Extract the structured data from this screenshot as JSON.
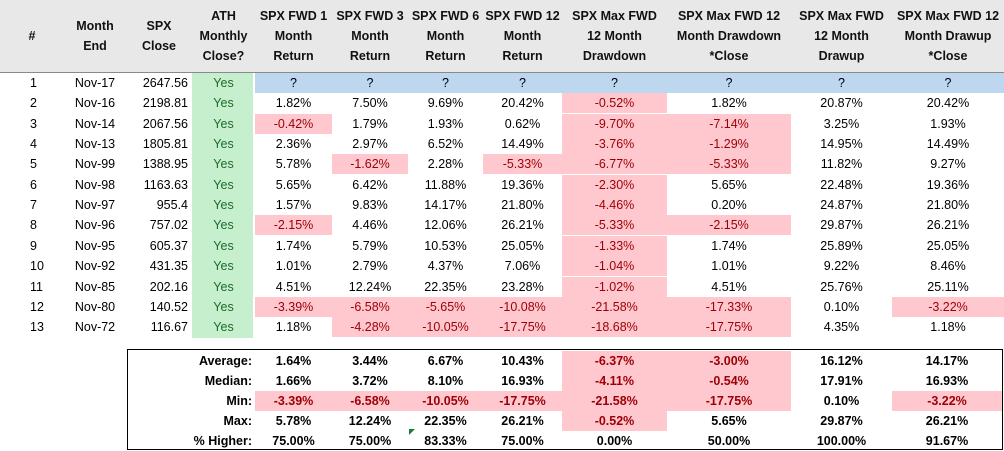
{
  "headers": [
    "#",
    "Month\nEnd",
    "SPX\nClose",
    "ATH\nMonthly\nClose?",
    "SPX FWD 1\nMonth\nReturn",
    "SPX FWD 3\nMonth\nReturn",
    "SPX FWD 6\nMonth\nReturn",
    "SPX FWD 12\nMonth\nReturn",
    "SPX Max FWD\n12 Month\nDrawdown",
    "SPX Max FWD 12\nMonth Drawdown\n*Close",
    "SPX Max FWD\n12 Month\nDrawup",
    "SPX Max FWD 12\nMonth Drawup\n*Close"
  ],
  "rows": [
    {
      "n": "1",
      "month": "Nov-17",
      "close": "2647.56",
      "ath": "Yes",
      "values": [
        "?",
        "?",
        "?",
        "?",
        "?",
        "?",
        "?",
        "?"
      ],
      "neg": [
        false,
        false,
        false,
        false,
        false,
        false,
        false,
        false
      ],
      "pending": true
    },
    {
      "n": "2",
      "month": "Nov-16",
      "close": "2198.81",
      "ath": "Yes",
      "values": [
        "1.82%",
        "7.50%",
        "9.69%",
        "20.42%",
        "-0.52%",
        "1.82%",
        "20.87%",
        "20.42%"
      ],
      "neg": [
        false,
        false,
        false,
        false,
        true,
        false,
        false,
        false
      ]
    },
    {
      "n": "3",
      "month": "Nov-14",
      "close": "2067.56",
      "ath": "Yes",
      "values": [
        "-0.42%",
        "1.79%",
        "1.93%",
        "0.62%",
        "-9.70%",
        "-7.14%",
        "3.25%",
        "1.93%"
      ],
      "neg": [
        true,
        false,
        false,
        false,
        true,
        true,
        false,
        false
      ]
    },
    {
      "n": "4",
      "month": "Nov-13",
      "close": "1805.81",
      "ath": "Yes",
      "values": [
        "2.36%",
        "2.97%",
        "6.52%",
        "14.49%",
        "-3.76%",
        "-1.29%",
        "14.95%",
        "14.49%"
      ],
      "neg": [
        false,
        false,
        false,
        false,
        true,
        true,
        false,
        false
      ]
    },
    {
      "n": "5",
      "month": "Nov-99",
      "close": "1388.95",
      "ath": "Yes",
      "values": [
        "5.78%",
        "-1.62%",
        "2.28%",
        "-5.33%",
        "-6.77%",
        "-5.33%",
        "11.82%",
        "9.27%"
      ],
      "neg": [
        false,
        true,
        false,
        true,
        true,
        true,
        false,
        false
      ]
    },
    {
      "n": "6",
      "month": "Nov-98",
      "close": "1163.63",
      "ath": "Yes",
      "values": [
        "5.65%",
        "6.42%",
        "11.88%",
        "19.36%",
        "-2.30%",
        "5.65%",
        "22.48%",
        "19.36%"
      ],
      "neg": [
        false,
        false,
        false,
        false,
        true,
        false,
        false,
        false
      ]
    },
    {
      "n": "7",
      "month": "Nov-97",
      "close": "955.4",
      "ath": "Yes",
      "values": [
        "1.57%",
        "9.83%",
        "14.17%",
        "21.80%",
        "-4.46%",
        "0.20%",
        "24.87%",
        "21.80%"
      ],
      "neg": [
        false,
        false,
        false,
        false,
        true,
        false,
        false,
        false
      ]
    },
    {
      "n": "8",
      "month": "Nov-96",
      "close": "757.02",
      "ath": "Yes",
      "values": [
        "-2.15%",
        "4.46%",
        "12.06%",
        "26.21%",
        "-5.33%",
        "-2.15%",
        "29.87%",
        "26.21%"
      ],
      "neg": [
        true,
        false,
        false,
        false,
        true,
        true,
        false,
        false
      ]
    },
    {
      "n": "9",
      "month": "Nov-95",
      "close": "605.37",
      "ath": "Yes",
      "values": [
        "1.74%",
        "5.79%",
        "10.53%",
        "25.05%",
        "-1.33%",
        "1.74%",
        "25.89%",
        "25.05%"
      ],
      "neg": [
        false,
        false,
        false,
        false,
        true,
        false,
        false,
        false
      ]
    },
    {
      "n": "10",
      "month": "Nov-92",
      "close": "431.35",
      "ath": "Yes",
      "values": [
        "1.01%",
        "2.79%",
        "4.37%",
        "7.06%",
        "-1.04%",
        "1.01%",
        "9.22%",
        "8.46%"
      ],
      "neg": [
        false,
        false,
        false,
        false,
        true,
        false,
        false,
        false
      ]
    },
    {
      "n": "11",
      "month": "Nov-85",
      "close": "202.16",
      "ath": "Yes",
      "values": [
        "4.51%",
        "12.24%",
        "22.35%",
        "23.28%",
        "-1.02%",
        "4.51%",
        "25.76%",
        "25.11%"
      ],
      "neg": [
        false,
        false,
        false,
        false,
        true,
        false,
        false,
        false
      ]
    },
    {
      "n": "12",
      "month": "Nov-80",
      "close": "140.52",
      "ath": "Yes",
      "values": [
        "-3.39%",
        "-6.58%",
        "-5.65%",
        "-10.08%",
        "-21.58%",
        "-17.33%",
        "0.10%",
        "-3.22%"
      ],
      "neg": [
        true,
        true,
        true,
        true,
        true,
        true,
        false,
        true
      ]
    },
    {
      "n": "13",
      "month": "Nov-72",
      "close": "116.67",
      "ath": "Yes",
      "values": [
        "1.18%",
        "-4.28%",
        "-10.05%",
        "-17.75%",
        "-18.68%",
        "-17.75%",
        "4.35%",
        "1.18%"
      ],
      "neg": [
        false,
        true,
        true,
        true,
        true,
        true,
        false,
        false
      ]
    }
  ],
  "summary": [
    {
      "label": "Average:",
      "values": [
        "1.64%",
        "3.44%",
        "6.67%",
        "10.43%",
        "-6.37%",
        "-3.00%",
        "16.12%",
        "14.17%"
      ],
      "neg": [
        false,
        false,
        false,
        false,
        true,
        true,
        false,
        false
      ]
    },
    {
      "label": "Median:",
      "values": [
        "1.66%",
        "3.72%",
        "8.10%",
        "16.93%",
        "-4.11%",
        "-0.54%",
        "17.91%",
        "16.93%"
      ],
      "neg": [
        false,
        false,
        false,
        false,
        true,
        true,
        false,
        false
      ]
    },
    {
      "label": "Min:",
      "values": [
        "-3.39%",
        "-6.58%",
        "-10.05%",
        "-17.75%",
        "-21.58%",
        "-17.75%",
        "0.10%",
        "-3.22%"
      ],
      "neg": [
        true,
        true,
        true,
        true,
        true,
        true,
        false,
        true
      ]
    },
    {
      "label": "Max:",
      "values": [
        "5.78%",
        "12.24%",
        "22.35%",
        "26.21%",
        "-0.52%",
        "5.65%",
        "29.87%",
        "26.21%"
      ],
      "neg": [
        false,
        false,
        false,
        false,
        true,
        false,
        false,
        false
      ]
    },
    {
      "label": "% Higher:",
      "values": [
        "75.00%",
        "75.00%",
        "83.33%",
        "75.00%",
        "0.00%",
        "50.00%",
        "100.00%",
        "91.67%"
      ],
      "neg": [
        false,
        false,
        false,
        false,
        false,
        false,
        false,
        false
      ]
    }
  ],
  "colors": {
    "header_bg": "#e8e8e8",
    "ath_green_bg": "#c6efce",
    "ath_green_text": "#1e6b2c",
    "negative_bg": "#ffc7ce",
    "negative_text": "#9c0006",
    "pending_blue_bg": "#bdd7ee"
  }
}
